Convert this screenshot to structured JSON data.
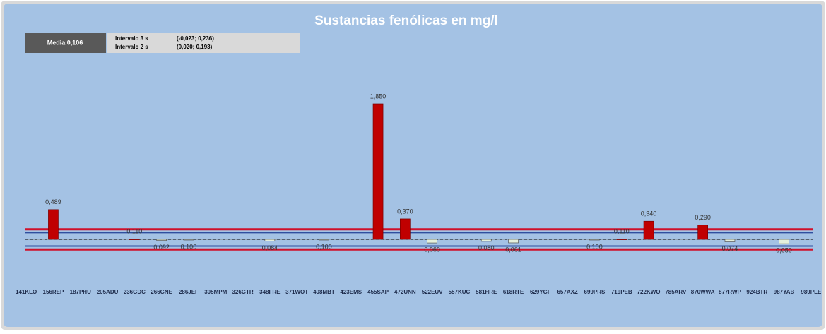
{
  "chart_data": {
    "type": "bar",
    "title": "Sustancias fenólicas en mg/l",
    "mean": 0.106,
    "mean_label": "Media 0,106",
    "interval_3s_label": "Intervalo 3 s",
    "interval_3s_text": "(-0,023; 0,236)",
    "interval_3s": [
      -0.023,
      0.236
    ],
    "interval_2s_label": "Intervalo 2 s",
    "interval_2s_text": "(0,020; 0,193)",
    "interval_2s": [
      0.02,
      0.193
    ],
    "categories": [
      "141KLO",
      "156REP",
      "187PHU",
      "205ADU",
      "236GDC",
      "266GNE",
      "286JEF",
      "305MPM",
      "326GTR",
      "348FRE",
      "371WOT",
      "408MBT",
      "423EMS",
      "455SAP",
      "472UNN",
      "522EUV",
      "557KUC",
      "581HRE",
      "618RTE",
      "629YGF",
      "657AXZ",
      "699PRS",
      "719PEB",
      "722KWO",
      "785ARV",
      "870WWA",
      "877RWP",
      "924BTR",
      "987YAB",
      "989PLE"
    ],
    "values": [
      null,
      0.489,
      null,
      null,
      0.11,
      0.092,
      0.1,
      null,
      null,
      0.084,
      null,
      0.1,
      null,
      1.85,
      0.37,
      0.06,
      null,
      0.08,
      0.061,
      null,
      null,
      0.1,
      0.11,
      0.34,
      null,
      0.29,
      0.074,
      null,
      0.05,
      null
    ],
    "value_labels": [
      null,
      "0,489",
      null,
      null,
      "0,110",
      "0,092",
      "0,100",
      null,
      null,
      "0,084",
      null,
      "0,100",
      null,
      "1,850",
      "0,370",
      "0,060",
      null,
      "0,080",
      "0,061",
      null,
      null,
      "0,100",
      "0,110",
      "0,340",
      null,
      "0,290",
      "0,074",
      null,
      "0,050",
      null
    ],
    "above_color": "#c00000",
    "below_color": "#e4f0dc",
    "limit_3s_color": "#d0102a",
    "limit_2s_color": "#2f4f9f",
    "ylim": [
      -0.2,
      2.0
    ]
  }
}
